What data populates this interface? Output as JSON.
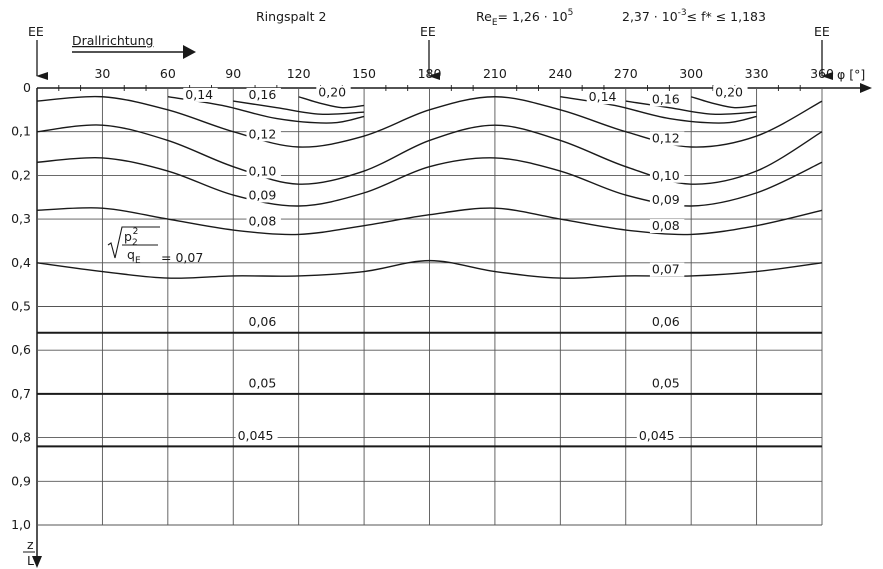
{
  "header": {
    "title": "Ringspalt 2",
    "re_label": "Re",
    "re_sub": "E",
    "re_value": "= 1,26 · 10",
    "re_exp": "5",
    "f_range": "2,37 · 10",
    "f_exp": "-3",
    "f_rest": "≤ f* ≤ 1,183",
    "drall": "Drallrichtung",
    "ee": "EE"
  },
  "formula": {
    "p": "p",
    "p_sub": "2",
    "p_sup": "2",
    "q": "q",
    "q_sub": "E",
    "eq": "= 0,07"
  },
  "axes": {
    "x_unit": "φ [°]",
    "y_num": "z",
    "y_den": "L"
  },
  "chart_data": {
    "type": "line",
    "title": "Ringspalt 2",
    "xlim": [
      0,
      360
    ],
    "ylim": [
      0,
      1.0
    ],
    "y_inverted": true,
    "grid": true,
    "x_ticks": [
      0,
      30,
      60,
      90,
      120,
      150,
      180,
      210,
      240,
      270,
      300,
      330,
      360
    ],
    "x_ticklabels": [
      "30",
      "60",
      "90",
      "120",
      "150",
      "180",
      "210",
      "240",
      "270",
      "300",
      "330",
      "360"
    ],
    "y_ticks": [
      0,
      0.1,
      0.2,
      0.3,
      0.4,
      0.5,
      0.6,
      0.7,
      0.8,
      0.9,
      1.0
    ],
    "y_ticklabels": [
      "0",
      "0,1",
      "0,2",
      "0,3",
      "0,4",
      "0,5",
      "0,6",
      "0,7",
      "0,8",
      "0,9",
      "1,0"
    ],
    "ee_markers": [
      0,
      180,
      360
    ],
    "series": [
      {
        "level": 0.2,
        "points": [
          [
            120,
            0.02
          ],
          [
            130,
            0.035
          ],
          [
            140,
            0.045
          ],
          [
            150,
            0.04
          ]
        ]
      },
      {
        "level": 0.2,
        "points": [
          [
            300,
            0.02
          ],
          [
            310,
            0.035
          ],
          [
            320,
            0.045
          ],
          [
            330,
            0.04
          ]
        ]
      },
      {
        "level": 0.16,
        "points": [
          [
            90,
            0.03
          ],
          [
            110,
            0.045
          ],
          [
            130,
            0.06
          ],
          [
            150,
            0.055
          ]
        ]
      },
      {
        "level": 0.16,
        "points": [
          [
            270,
            0.03
          ],
          [
            290,
            0.045
          ],
          [
            310,
            0.06
          ],
          [
            330,
            0.055
          ]
        ]
      },
      {
        "level": 0.14,
        "points": [
          [
            60,
            0.02
          ],
          [
            85,
            0.04
          ],
          [
            110,
            0.07
          ],
          [
            135,
            0.08
          ],
          [
            150,
            0.065
          ]
        ]
      },
      {
        "level": 0.14,
        "points": [
          [
            240,
            0.02
          ],
          [
            265,
            0.04
          ],
          [
            290,
            0.07
          ],
          [
            315,
            0.08
          ],
          [
            330,
            0.065
          ]
        ]
      },
      {
        "level": 0.12,
        "points": [
          [
            0,
            0.03
          ],
          [
            30,
            0.02
          ],
          [
            60,
            0.05
          ],
          [
            90,
            0.1
          ],
          [
            120,
            0.135
          ],
          [
            150,
            0.11
          ],
          [
            180,
            0.05
          ],
          [
            210,
            0.02
          ],
          [
            240,
            0.05
          ],
          [
            270,
            0.1
          ],
          [
            300,
            0.135
          ],
          [
            330,
            0.11
          ],
          [
            360,
            0.03
          ]
        ]
      },
      {
        "level": 0.1,
        "points": [
          [
            0,
            0.1
          ],
          [
            30,
            0.085
          ],
          [
            60,
            0.12
          ],
          [
            90,
            0.18
          ],
          [
            120,
            0.22
          ],
          [
            150,
            0.19
          ],
          [
            180,
            0.12
          ],
          [
            210,
            0.085
          ],
          [
            240,
            0.12
          ],
          [
            270,
            0.18
          ],
          [
            300,
            0.22
          ],
          [
            330,
            0.19
          ],
          [
            360,
            0.1
          ]
        ]
      },
      {
        "level": 0.09,
        "points": [
          [
            0,
            0.17
          ],
          [
            30,
            0.16
          ],
          [
            60,
            0.19
          ],
          [
            90,
            0.245
          ],
          [
            120,
            0.27
          ],
          [
            150,
            0.24
          ],
          [
            180,
            0.18
          ],
          [
            210,
            0.16
          ],
          [
            240,
            0.19
          ],
          [
            270,
            0.245
          ],
          [
            300,
            0.27
          ],
          [
            330,
            0.24
          ],
          [
            360,
            0.17
          ]
        ]
      },
      {
        "level": 0.08,
        "points": [
          [
            0,
            0.28
          ],
          [
            30,
            0.275
          ],
          [
            60,
            0.3
          ],
          [
            90,
            0.325
          ],
          [
            120,
            0.335
          ],
          [
            150,
            0.315
          ],
          [
            180,
            0.29
          ],
          [
            210,
            0.275
          ],
          [
            240,
            0.3
          ],
          [
            270,
            0.325
          ],
          [
            300,
            0.335
          ],
          [
            330,
            0.315
          ],
          [
            360,
            0.28
          ]
        ]
      },
      {
        "level": 0.07,
        "points": [
          [
            0,
            0.4
          ],
          [
            30,
            0.42
          ],
          [
            60,
            0.435
          ],
          [
            90,
            0.43
          ],
          [
            120,
            0.43
          ],
          [
            150,
            0.42
          ],
          [
            180,
            0.395
          ],
          [
            210,
            0.42
          ],
          [
            240,
            0.435
          ],
          [
            270,
            0.43
          ],
          [
            300,
            0.43
          ],
          [
            330,
            0.42
          ],
          [
            360,
            0.4
          ]
        ]
      },
      {
        "level": 0.06,
        "points": [
          [
            0,
            0.56
          ],
          [
            360,
            0.56
          ]
        ]
      },
      {
        "level": 0.05,
        "points": [
          [
            0,
            0.7
          ],
          [
            360,
            0.7
          ]
        ]
      },
      {
        "level": 0.045,
        "points": [
          [
            0,
            0.82
          ],
          [
            360,
            0.82
          ]
        ]
      }
    ],
    "labels": [
      {
        "text": "0,14",
        "x": 68,
        "y": 0.025
      },
      {
        "text": "0,16",
        "x": 97,
        "y": 0.025
      },
      {
        "text": "0,20",
        "x": 129,
        "y": 0.02
      },
      {
        "text": "0,14",
        "x": 253,
        "y": 0.03
      },
      {
        "text": "0,16",
        "x": 282,
        "y": 0.035
      },
      {
        "text": "0,20",
        "x": 311,
        "y": 0.02
      },
      {
        "text": "0,12",
        "x": 97,
        "y": 0.115
      },
      {
        "text": "0,12",
        "x": 282,
        "y": 0.125
      },
      {
        "text": "0,10",
        "x": 97,
        "y": 0.2
      },
      {
        "text": "0,10",
        "x": 282,
        "y": 0.21
      },
      {
        "text": "0,09",
        "x": 97,
        "y": 0.255
      },
      {
        "text": "0,09",
        "x": 282,
        "y": 0.265
      },
      {
        "text": "0,08",
        "x": 97,
        "y": 0.315
      },
      {
        "text": "0,08",
        "x": 282,
        "y": 0.325
      },
      {
        "text": "0,07",
        "x": 282,
        "y": 0.425
      },
      {
        "text": "0,06",
        "x": 97,
        "y": 0.545
      },
      {
        "text": "0,06",
        "x": 282,
        "y": 0.545
      },
      {
        "text": "0,05",
        "x": 97,
        "y": 0.685
      },
      {
        "text": "0,05",
        "x": 282,
        "y": 0.685
      },
      {
        "text": "0,045",
        "x": 92,
        "y": 0.805
      },
      {
        "text": "0,045",
        "x": 276,
        "y": 0.805
      }
    ]
  }
}
